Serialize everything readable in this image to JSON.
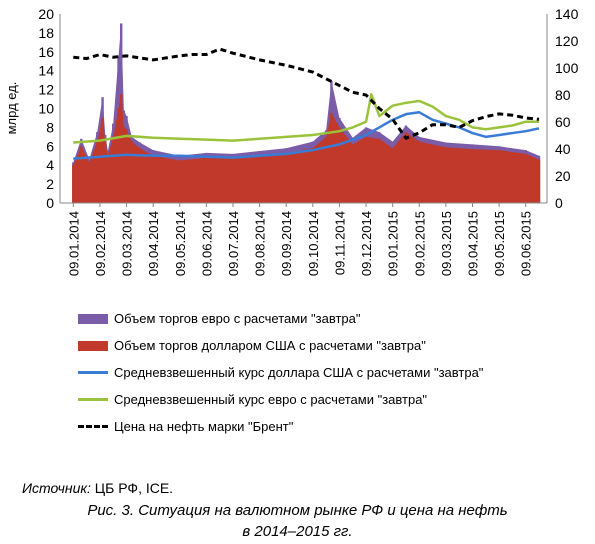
{
  "chart_data": {
    "type": "bar+line",
    "ylabel_left": "млрд ед.",
    "ylim_left": [
      0,
      20
    ],
    "yticks_left": [
      0,
      2,
      4,
      6,
      8,
      10,
      12,
      14,
      16,
      18,
      20
    ],
    "ylim_right": [
      0,
      140
    ],
    "yticks_right": [
      0,
      20,
      40,
      60,
      80,
      100,
      120,
      140
    ],
    "x_tick_labels": [
      "09.01.2014",
      "09.02.2014",
      "09.03.2014",
      "09.04.2014",
      "09.05.2014",
      "09.06.2014",
      "09.07.2014",
      "09.08.2014",
      "09.09.2014",
      "09.10.2014",
      "09.11.2014",
      "09.12.2014",
      "09.01.2015",
      "09.02.2015",
      "09.03.2015",
      "09.04.2015",
      "09.05.2015",
      "09.06.2015"
    ],
    "series": [
      {
        "name": "Объем торгов евро с расчетами \"завтра\"",
        "kind": "bar",
        "axis": "left",
        "color": "#7B5CA8",
        "x": [
          0,
          0.3,
          0.6,
          0.9,
          1.1,
          1.2,
          1.3,
          1.5,
          1.7,
          1.8,
          1.9,
          2.0,
          2.2,
          2.5,
          3,
          4,
          5,
          6,
          7,
          8,
          9,
          9.5,
          9.7,
          10,
          10.5,
          11,
          11.5,
          12,
          12.5,
          13,
          14,
          15,
          16,
          17,
          17.5
        ],
        "values": [
          4.3,
          6.8,
          4.6,
          7.5,
          11.2,
          7.2,
          5.5,
          8.4,
          15.5,
          19.0,
          9.8,
          9.2,
          7.0,
          6.4,
          5.6,
          5.0,
          5.3,
          5.2,
          5.5,
          5.8,
          6.5,
          7.7,
          12.9,
          9.0,
          6.9,
          8.0,
          7.5,
          6.5,
          8.2,
          7.0,
          6.4,
          6.2,
          6.0,
          5.6,
          5.0
        ]
      },
      {
        "name": "Объем торгов долларом США с расчетами \"завтра\"",
        "kind": "bar",
        "axis": "left",
        "color": "#C0392B",
        "x": [
          0,
          0.3,
          0.6,
          0.9,
          1.1,
          1.2,
          1.3,
          1.5,
          1.7,
          1.8,
          1.9,
          2.0,
          2.2,
          2.5,
          3,
          4,
          5,
          6,
          7,
          8,
          9,
          9.5,
          9.7,
          10,
          10.5,
          11,
          11.5,
          12,
          12.5,
          13,
          14,
          15,
          16,
          17,
          17.5
        ],
        "values": [
          4.0,
          6.0,
          4.3,
          6.5,
          9.0,
          6.5,
          5.0,
          7.0,
          10.0,
          11.5,
          8.0,
          7.8,
          6.5,
          5.8,
          5.0,
          4.5,
          4.8,
          4.7,
          5.0,
          5.3,
          5.8,
          7.0,
          9.5,
          8.0,
          6.2,
          7.0,
          6.8,
          5.8,
          7.5,
          6.5,
          5.9,
          5.7,
          5.6,
          5.2,
          4.6
        ]
      },
      {
        "name": "Средневзвешенный курс доллара США с расчетами \"завтра\"",
        "kind": "line",
        "axis": "left",
        "color": "#3A7BD5",
        "x": [
          0,
          1,
          2,
          3,
          4,
          5,
          6,
          7,
          8,
          9,
          10,
          10.5,
          11,
          11.5,
          12,
          12.5,
          13,
          13.5,
          14,
          14.5,
          15,
          15.5,
          16,
          16.5,
          17,
          17.5
        ],
        "values": [
          4.7,
          4.9,
          5.1,
          5.0,
          5.0,
          4.9,
          4.8,
          5.0,
          5.2,
          5.6,
          6.2,
          6.7,
          7.2,
          8.0,
          8.8,
          9.4,
          9.6,
          8.8,
          8.4,
          8.0,
          7.4,
          7.0,
          7.2,
          7.4,
          7.6,
          7.9
        ]
      },
      {
        "name": "Средневзвешенный курс евро с расчетами \"завтра\"",
        "kind": "line",
        "axis": "left",
        "color": "#9AC33B",
        "x": [
          0,
          1,
          2,
          3,
          4,
          5,
          6,
          7,
          8,
          9,
          10,
          10.5,
          11,
          11.2,
          11.5,
          12,
          12.5,
          13,
          13.5,
          14,
          14.5,
          15,
          15.5,
          16,
          16.5,
          17,
          17.5
        ],
        "values": [
          6.4,
          6.6,
          7.1,
          6.9,
          6.8,
          6.7,
          6.6,
          6.8,
          7.0,
          7.2,
          7.6,
          8.0,
          8.6,
          11.5,
          9.2,
          10.3,
          10.6,
          10.8,
          10.2,
          9.2,
          8.8,
          8.0,
          7.8,
          8.0,
          8.2,
          8.6,
          8.6
        ]
      },
      {
        "name": "Цена на нефть марки \"Брент\"",
        "kind": "line",
        "axis": "right",
        "color": "#000000",
        "dashed": true,
        "x": [
          0,
          0.5,
          1,
          1.5,
          2,
          3,
          4,
          4.5,
          5,
          5.5,
          6,
          7,
          8,
          9,
          9.5,
          10,
          10.5,
          11,
          11.5,
          12,
          12.5,
          13,
          13.5,
          14,
          14.5,
          15,
          15.5,
          16,
          16.5,
          17,
          17.5
        ],
        "values": [
          108,
          107,
          110,
          108,
          109,
          106,
          109,
          110,
          110,
          114,
          111,
          106,
          102,
          97,
          92,
          87,
          82,
          80,
          70,
          62,
          48,
          52,
          58,
          58,
          56,
          61,
          64,
          66,
          65,
          63,
          62
        ]
      }
    ]
  },
  "source": {
    "label": "Источник:",
    "text": " ЦБ РФ, ICE."
  },
  "caption": {
    "line1": "Рис. 3. Ситуация на валютном рынке РФ и цена на нефть",
    "line2": "в 2014–2015 гг."
  }
}
